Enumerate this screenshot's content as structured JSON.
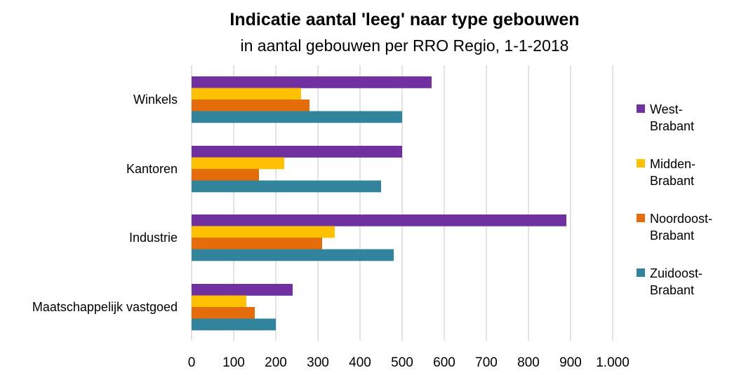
{
  "chart_data": {
    "type": "bar",
    "orientation": "horizontal",
    "title": "Indicatie aantal 'leeg' naar type gebouwen",
    "subtitle": "in aantal gebouwen per RRO Regio, 1-1-2018",
    "categories": [
      "Winkels",
      "Kantoren",
      "Industrie",
      "Maatschappelijk vastgoed"
    ],
    "series": [
      {
        "name": "West-Brabant",
        "legend_lines": [
          "West-",
          "Brabant"
        ],
        "color": "#7030A0",
        "values": [
          570,
          500,
          890,
          240
        ]
      },
      {
        "name": "Midden-Brabant",
        "legend_lines": [
          "Midden-",
          "Brabant"
        ],
        "color": "#FFC000",
        "values": [
          260,
          220,
          340,
          130
        ]
      },
      {
        "name": "Noordoost-Brabant",
        "legend_lines": [
          "Noordoost-",
          "Brabant"
        ],
        "color": "#E46C0A",
        "values": [
          280,
          160,
          310,
          150
        ]
      },
      {
        "name": "Zuidoost-Brabant",
        "legend_lines": [
          "Zuidoost-",
          "Brabant"
        ],
        "color": "#31849B",
        "values": [
          500,
          450,
          480,
          200
        ]
      }
    ],
    "x_ticks": [
      "0",
      "100",
      "200",
      "300",
      "400",
      "500",
      "600",
      "700",
      "800",
      "900",
      "1.000"
    ],
    "xlim": [
      0,
      1000
    ],
    "xlabel": "",
    "ylabel": "",
    "grid": "vertical",
    "legend_position": "right"
  }
}
